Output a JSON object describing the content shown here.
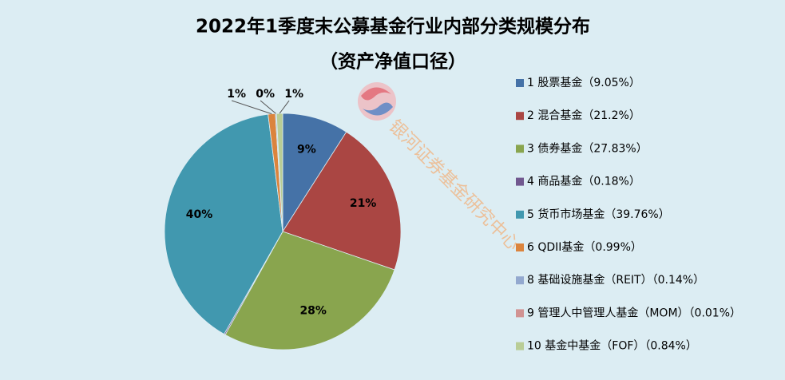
{
  "chart_data": {
    "type": "pie",
    "title": "2022年1季度末公募基金行业内部分类规模分布",
    "subtitle": "（资产净值口径）",
    "watermark": "银河证券基金研究中心",
    "categories": [
      "1 股票基金（9.05%）",
      "2 混合基金（21.2%）",
      "3 债券基金（27.83%）",
      "4 商品基金（0.18%）",
      "5 货币市场基金（39.76%）",
      "6 QDII基金（0.99%）",
      "8 基础设施基金（REIT）（0.14%）",
      "9 管理人中管理人基金（MOM）（0.01%）",
      "10 基金中基金（FOF）（0.84%）"
    ],
    "values": [
      9.05,
      21.2,
      27.83,
      0.18,
      39.76,
      0.99,
      0.14,
      0.01,
      0.84
    ],
    "value_labels": [
      "9%",
      "21%",
      "28%",
      null,
      "40%",
      "1%",
      "0%",
      null,
      "1%"
    ],
    "colors": [
      "#4572a7",
      "#aa4643",
      "#89a54e",
      "#71588f",
      "#4198af",
      "#db843d",
      "#93a9cf",
      "#d19392",
      "#b9cd96"
    ],
    "legend": "right"
  }
}
